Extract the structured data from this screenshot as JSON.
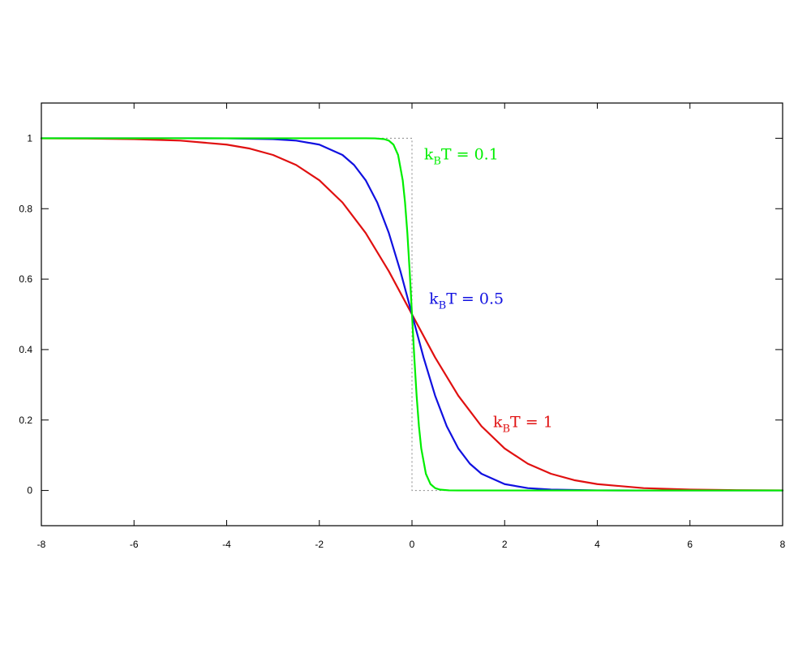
{
  "chart_data": {
    "type": "line",
    "title": "",
    "xlabel": "",
    "ylabel": "",
    "xlim": [
      -8,
      8
    ],
    "ylim": [
      -0.1,
      1.1
    ],
    "grid": false,
    "x_ticks": [
      -8,
      -6,
      -4,
      -2,
      0,
      2,
      4,
      6,
      8
    ],
    "x_tick_labels": [
      "-8",
      "-6",
      "-4",
      "-2",
      "0",
      "2",
      "4",
      "6",
      "8"
    ],
    "y_ticks": [
      0,
      0.2,
      0.4,
      0.6,
      0.8,
      1
    ],
    "y_tick_labels": [
      "0",
      "0.2",
      "0.4",
      "0.6",
      "0.8",
      "1"
    ],
    "reference": {
      "style": "dotted",
      "color": "#888888",
      "x": [
        -8,
        0,
        0,
        8
      ],
      "y": [
        1,
        1,
        0,
        0
      ]
    },
    "series": [
      {
        "id": "kt01",
        "label_main": "k",
        "label_sub": "B",
        "label_rest": "T = 0.1",
        "color": "#00ee00",
        "label_anchor": [
          0.26,
          0.94
        ],
        "x": [
          -8,
          -2,
          -1,
          -0.8,
          -0.6,
          -0.5,
          -0.4,
          -0.3,
          -0.2,
          -0.15,
          -0.1,
          -0.05,
          0,
          0.05,
          0.1,
          0.15,
          0.2,
          0.3,
          0.4,
          0.5,
          0.6,
          0.8,
          1,
          2,
          8
        ],
        "y": [
          1,
          1,
          1,
          0.9997,
          0.9975,
          0.9933,
          0.982,
          0.9526,
          0.8808,
          0.8176,
          0.7311,
          0.6225,
          0.5,
          0.3775,
          0.2689,
          0.1824,
          0.1192,
          0.0474,
          0.018,
          0.0067,
          0.0025,
          0.0003,
          0,
          0,
          0
        ]
      },
      {
        "id": "kt05",
        "label_main": "k",
        "label_sub": "B",
        "label_rest": "T = 0.5",
        "color": "#1010e0",
        "label_anchor": [
          0.37,
          0.53
        ],
        "x": [
          -8,
          -5,
          -4,
          -3,
          -2.5,
          -2,
          -1.5,
          -1.25,
          -1,
          -0.75,
          -0.5,
          -0.25,
          0,
          0.25,
          0.5,
          0.75,
          1,
          1.25,
          1.5,
          2,
          2.5,
          3,
          4,
          5,
          8
        ],
        "y": [
          1,
          1,
          0.9997,
          0.9975,
          0.9933,
          0.982,
          0.9526,
          0.9241,
          0.8808,
          0.8176,
          0.7311,
          0.6225,
          0.5,
          0.3775,
          0.2689,
          0.1824,
          0.1192,
          0.0759,
          0.0474,
          0.018,
          0.0067,
          0.0025,
          0.0003,
          0,
          0
        ]
      },
      {
        "id": "kt1",
        "label_main": "k",
        "label_sub": "B",
        "label_rest": "T = 1",
        "color": "#e01010",
        "label_anchor": [
          1.75,
          0.18
        ],
        "x": [
          -8,
          -7,
          -6,
          -5,
          -4,
          -3.5,
          -3,
          -2.5,
          -2,
          -1.5,
          -1,
          -0.5,
          0,
          0.5,
          1,
          1.5,
          2,
          2.5,
          3,
          3.5,
          4,
          5,
          6,
          7,
          8
        ],
        "y": [
          0.9997,
          0.9991,
          0.9975,
          0.9933,
          0.982,
          0.9707,
          0.9526,
          0.9241,
          0.8808,
          0.8176,
          0.7311,
          0.6225,
          0.5,
          0.3775,
          0.2689,
          0.1824,
          0.1192,
          0.0759,
          0.0474,
          0.0293,
          0.018,
          0.0067,
          0.0025,
          0.0009,
          0.0003
        ]
      }
    ]
  }
}
